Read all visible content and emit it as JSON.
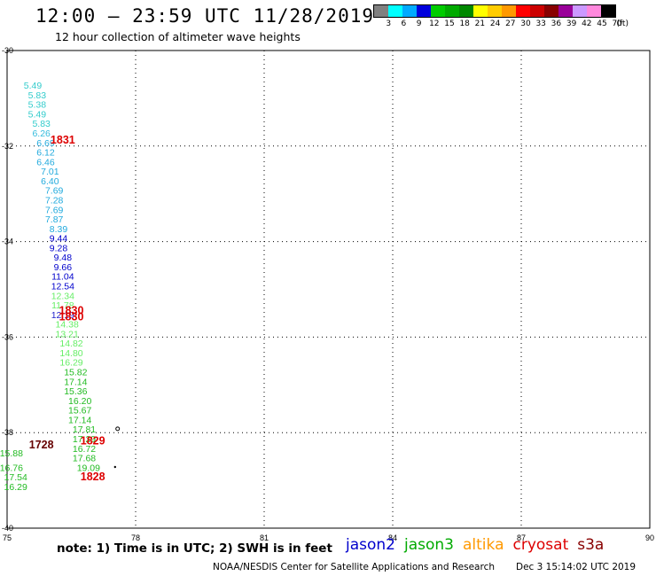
{
  "header": {
    "title": "12:00 – 23:59 UTC 11/28/2019",
    "subtitle": "12 hour collection of altimeter wave heights"
  },
  "legend": {
    "colors": [
      "#808080",
      "#00ffff",
      "#00aaff",
      "#0000dd",
      "#00cc00",
      "#00aa00",
      "#008800",
      "#ffff00",
      "#ffcc00",
      "#ff9900",
      "#ff0000",
      "#cc0000",
      "#880000",
      "#990099",
      "#cc99ff",
      "#ff88dd",
      "#000000"
    ],
    "labels": [
      "3",
      "6",
      "9",
      "12",
      "15",
      "18",
      "21",
      "24",
      "27",
      "30",
      "33",
      "36",
      "39",
      "42",
      "45",
      "70",
      "(ft)"
    ]
  },
  "map": {
    "xticks": [
      "75",
      "78",
      "81",
      "84",
      "87",
      "90"
    ],
    "yticks": [
      "-30",
      "-32",
      "-34",
      "-36",
      "-38",
      "-40"
    ],
    "xrange": [
      75,
      90
    ],
    "yrange": [
      -40,
      -30
    ]
  },
  "track_a": {
    "color_values": [
      "#33cccc",
      "#33cccc",
      "#33cccc",
      "#33cccc",
      "#33cccc",
      "#33bbdd",
      "#22aadd",
      "#22aadd",
      "#22aadd",
      "#22aadd",
      "#22aadd",
      "#22aadd",
      "#22aadd",
      "#22aadd",
      "#22aadd",
      "#22aadd",
      "#0000cc",
      "#0000cc",
      "#0000cc",
      "#0000cc",
      "#0000cc",
      "#0000cc",
      "#66ee66",
      "#2222cc",
      "#66ee66",
      "#66ee66",
      "#66ee66",
      "#66ee66",
      "#66ee66",
      "#22bb22",
      "#22bb22",
      "#22bb22",
      "#22bb22",
      "#22bb22",
      "#22bb22",
      "#22bb22",
      "#22bb22",
      "#22bb22",
      "#22bb22",
      "#22bb22",
      "#22bb22"
    ],
    "values": [
      "5.49",
      "5.83",
      "5.38",
      "5.49",
      "5.83",
      "6.26",
      "6.69",
      "6.12",
      "6.46",
      "7.01",
      "6.40",
      "7.69",
      "7.28",
      "7.69",
      "7.87",
      "8.39",
      "9.44",
      "9.28",
      "9.48",
      "9.66",
      "11.04",
      "12.54",
      "11.78",
      "12.19",
      "14.38",
      "13.21",
      "14.82",
      "14.80",
      "16.29",
      "15.82",
      "17.14",
      "15.36",
      "16.20",
      "15.67",
      "17.14",
      "17.81",
      "17.29",
      "16.72",
      "17.68",
      "19.09"
    ],
    "extra_overlap": "12.34",
    "lon": [
      75.6,
      75.7,
      75.7,
      75.7,
      75.8,
      75.8,
      75.9,
      75.9,
      75.9,
      76.0,
      76.0,
      76.1,
      76.1,
      76.1,
      76.1,
      76.2,
      76.2,
      76.2,
      76.3,
      76.3,
      76.3,
      76.3,
      76.3,
      76.3,
      76.4,
      76.4,
      76.5,
      76.5,
      76.5,
      76.6,
      76.6,
      76.6,
      76.7,
      76.7,
      76.7,
      76.8,
      76.8,
      76.8,
      76.8,
      76.9
    ],
    "lat": [
      -30.8,
      -31.0,
      -31.2,
      -31.4,
      -31.6,
      -31.8,
      -32.0,
      -32.2,
      -32.4,
      -32.6,
      -32.8,
      -33.0,
      -33.2,
      -33.4,
      -33.6,
      -33.8,
      -34.0,
      -34.2,
      -34.4,
      -34.6,
      -34.8,
      -35.0,
      -35.4,
      -35.6,
      -35.8,
      -36.0,
      -36.2,
      -36.4,
      -36.6,
      -36.8,
      -37.0,
      -37.2,
      -37.4,
      -37.6,
      -37.8,
      -38.0,
      -38.2,
      -38.4,
      -38.6,
      -38.8
    ]
  },
  "track_b": {
    "values": [
      "15.88",
      "16.76",
      "17.54",
      "16.29"
    ],
    "lon": [
      75.1,
      75.1,
      75.2,
      75.2
    ],
    "lat": [
      -38.5,
      -38.8,
      -39.0,
      -39.2
    ],
    "color": "#22bb22"
  },
  "time_labels": [
    {
      "text": "1831",
      "lon": 76.3,
      "lat": -31.95,
      "color": "#dd0000"
    },
    {
      "text": "1830",
      "lon": 76.5,
      "lat": -35.52,
      "color": "#dd0000"
    },
    {
      "text": "1830",
      "lon": 76.5,
      "lat": -35.65,
      "color": "#dd0000"
    },
    {
      "text": "1829",
      "lon": 77.0,
      "lat": -38.25,
      "color": "#dd0000"
    },
    {
      "text": "1728",
      "lon": 75.8,
      "lat": -38.33,
      "color": "#660000"
    },
    {
      "text": "1828",
      "lon": 77.0,
      "lat": -39.0,
      "color": "#dd0000"
    }
  ],
  "footer": {
    "note": "note: 1) Time is in UTC; 2) SWH is in feet",
    "satellites": [
      {
        "name": "jason2",
        "color": "#0000cc"
      },
      {
        "name": "jason3",
        "color": "#00aa00"
      },
      {
        "name": "altika",
        "color": "#ff9900"
      },
      {
        "name": "cryosat",
        "color": "#dd0000"
      },
      {
        "name": "s3a",
        "color": "#880000"
      }
    ],
    "credit": "NOAA/NESDIS Center for Satellite Applications and Research",
    "timestamp": "Dec  3 15:14:02 UTC 2019"
  }
}
